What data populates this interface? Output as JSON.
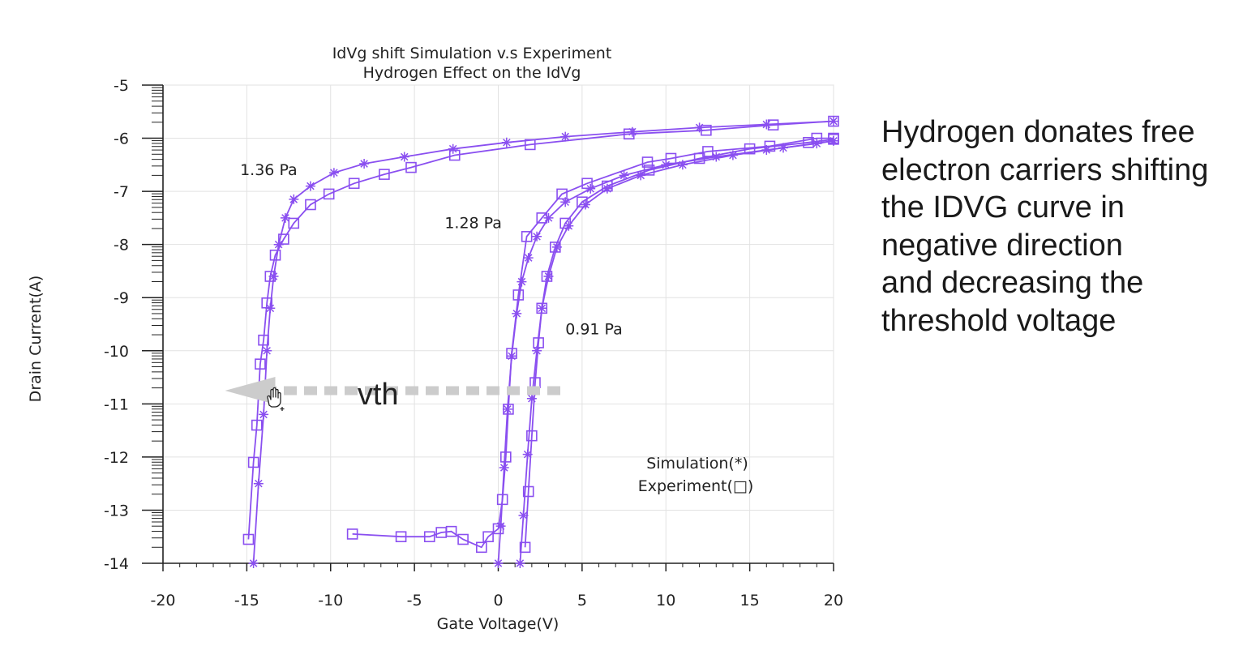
{
  "side_text": {
    "lines": [
      "Hydrogen donates free",
      "electron carriers shifting",
      "the IDVG curve in",
      "negative direction",
      "and decreasing the",
      "threshold voltage"
    ]
  },
  "colors": {
    "series": "#8a4ff0",
    "grid": "#e2e2e2",
    "axis": "#222222",
    "arrow": "#cccccc"
  },
  "chart_data": {
    "type": "line",
    "title": [
      "IdVg shift Simulation v.s Experiment",
      "Hydrogen Effect on the IdVg"
    ],
    "xlabel": "Gate Voltage(V)",
    "ylabel": "Drain Current(A)",
    "xlim": [
      -20,
      20
    ],
    "ylim": [
      -14,
      -5
    ],
    "xticks": [
      "-20",
      "-15",
      "-10",
      "-5",
      "0",
      "5",
      "10",
      "15",
      "20"
    ],
    "yticks": [
      "-5",
      "-6",
      "-7",
      "-8",
      "-9",
      "-10",
      "-11",
      "-12",
      "-13",
      "-14"
    ],
    "grid": true,
    "legend_text": [
      "Simulation(*)",
      "Experiment(□)"
    ],
    "annotations": [
      {
        "text": "1.36 Pa",
        "x": -15.4,
        "y": -6.6
      },
      {
        "text": "1.28 Pa",
        "x": -3.2,
        "y": -7.6
      },
      {
        "text": "0.91 Pa",
        "x": 4.0,
        "y": -9.6
      },
      {
        "text": "vth",
        "x": -8.4,
        "y": -10.8
      }
    ],
    "arrow": {
      "from_x": 3.7,
      "to_x": -16.3,
      "y": -10.75
    },
    "series": [
      {
        "marker": "star",
        "x": [
          -14.6,
          -14.3,
          -14.0,
          -13.8,
          -13.6,
          -13.4,
          -13.1,
          -12.7,
          -12.2,
          -11.2,
          -9.8,
          -8.0,
          -5.6,
          -2.7,
          0.5,
          4.0,
          8.0,
          12.0,
          16.0,
          20.0
        ],
        "y": [
          -14.0,
          -12.5,
          -11.2,
          -10.0,
          -9.2,
          -8.6,
          -8.0,
          -7.5,
          -7.15,
          -6.9,
          -6.65,
          -6.48,
          -6.35,
          -6.2,
          -6.08,
          -5.97,
          -5.88,
          -5.8,
          -5.74,
          -5.68
        ]
      },
      {
        "marker": "square",
        "x": [
          -14.9,
          -14.6,
          -14.4,
          -14.2,
          -14.0,
          -13.8,
          -13.6,
          -13.3,
          -12.8,
          -12.2,
          -11.2,
          -10.1,
          -8.6,
          -6.8,
          -5.2,
          -2.6,
          1.9,
          7.8,
          12.4,
          16.4,
          20.0
        ],
        "y": [
          -13.55,
          -12.1,
          -11.4,
          -10.25,
          -9.8,
          -9.1,
          -8.6,
          -8.2,
          -7.9,
          -7.6,
          -7.25,
          -7.05,
          -6.85,
          -6.68,
          -6.55,
          -6.32,
          -6.12,
          -5.92,
          -5.85,
          -5.75,
          -5.68
        ]
      },
      {
        "marker": "star",
        "x": [
          0.0,
          0.15,
          0.35,
          0.55,
          0.8,
          1.1,
          1.4,
          1.8,
          2.3,
          3.0,
          4.0,
          5.5,
          7.5,
          10.0,
          13.0,
          16.0,
          19.0,
          20.0
        ],
        "y": [
          -14.0,
          -13.3,
          -12.2,
          -11.1,
          -10.1,
          -9.3,
          -8.7,
          -8.25,
          -7.85,
          -7.5,
          -7.2,
          -6.95,
          -6.7,
          -6.5,
          -6.35,
          -6.22,
          -6.1,
          -6.05
        ]
      },
      {
        "marker": "square",
        "x": [
          -8.7,
          -5.8,
          -4.1,
          -3.4,
          -2.8,
          -2.1,
          -1.0,
          -0.6,
          0.0,
          0.25,
          0.45,
          0.6,
          0.8,
          1.2,
          1.7,
          2.6,
          3.8,
          5.3,
          8.9,
          10.3,
          12.5,
          16.2,
          19.0,
          20.0
        ],
        "y": [
          -13.45,
          -13.5,
          -13.5,
          -13.42,
          -13.4,
          -13.55,
          -13.7,
          -13.5,
          -13.35,
          -12.8,
          -12.0,
          -11.1,
          -10.05,
          -8.95,
          -7.85,
          -7.5,
          -7.05,
          -6.85,
          -6.45,
          -6.38,
          -6.25,
          -6.15,
          -6.0,
          -6.0
        ]
      },
      {
        "marker": "star",
        "x": [
          1.3,
          1.5,
          1.75,
          2.0,
          2.3,
          2.6,
          3.0,
          3.5,
          4.2,
          5.2,
          6.5,
          8.5,
          11.0,
          14.0,
          17.0,
          20.0
        ],
        "y": [
          -14.0,
          -13.1,
          -11.95,
          -10.9,
          -10.0,
          -9.2,
          -8.6,
          -8.05,
          -7.65,
          -7.25,
          -6.95,
          -6.7,
          -6.5,
          -6.32,
          -6.18,
          -6.05
        ]
      },
      {
        "marker": "square",
        "x": [
          1.6,
          1.8,
          2.0,
          2.2,
          2.4,
          2.6,
          2.9,
          3.4,
          4.0,
          5.0,
          6.5,
          9.0,
          12.0,
          15.0,
          18.5,
          20.0
        ],
        "y": [
          -13.7,
          -12.65,
          -11.6,
          -10.6,
          -9.85,
          -9.2,
          -8.6,
          -8.05,
          -7.6,
          -7.2,
          -6.9,
          -6.6,
          -6.38,
          -6.2,
          -6.08,
          -6.02
        ]
      }
    ]
  }
}
